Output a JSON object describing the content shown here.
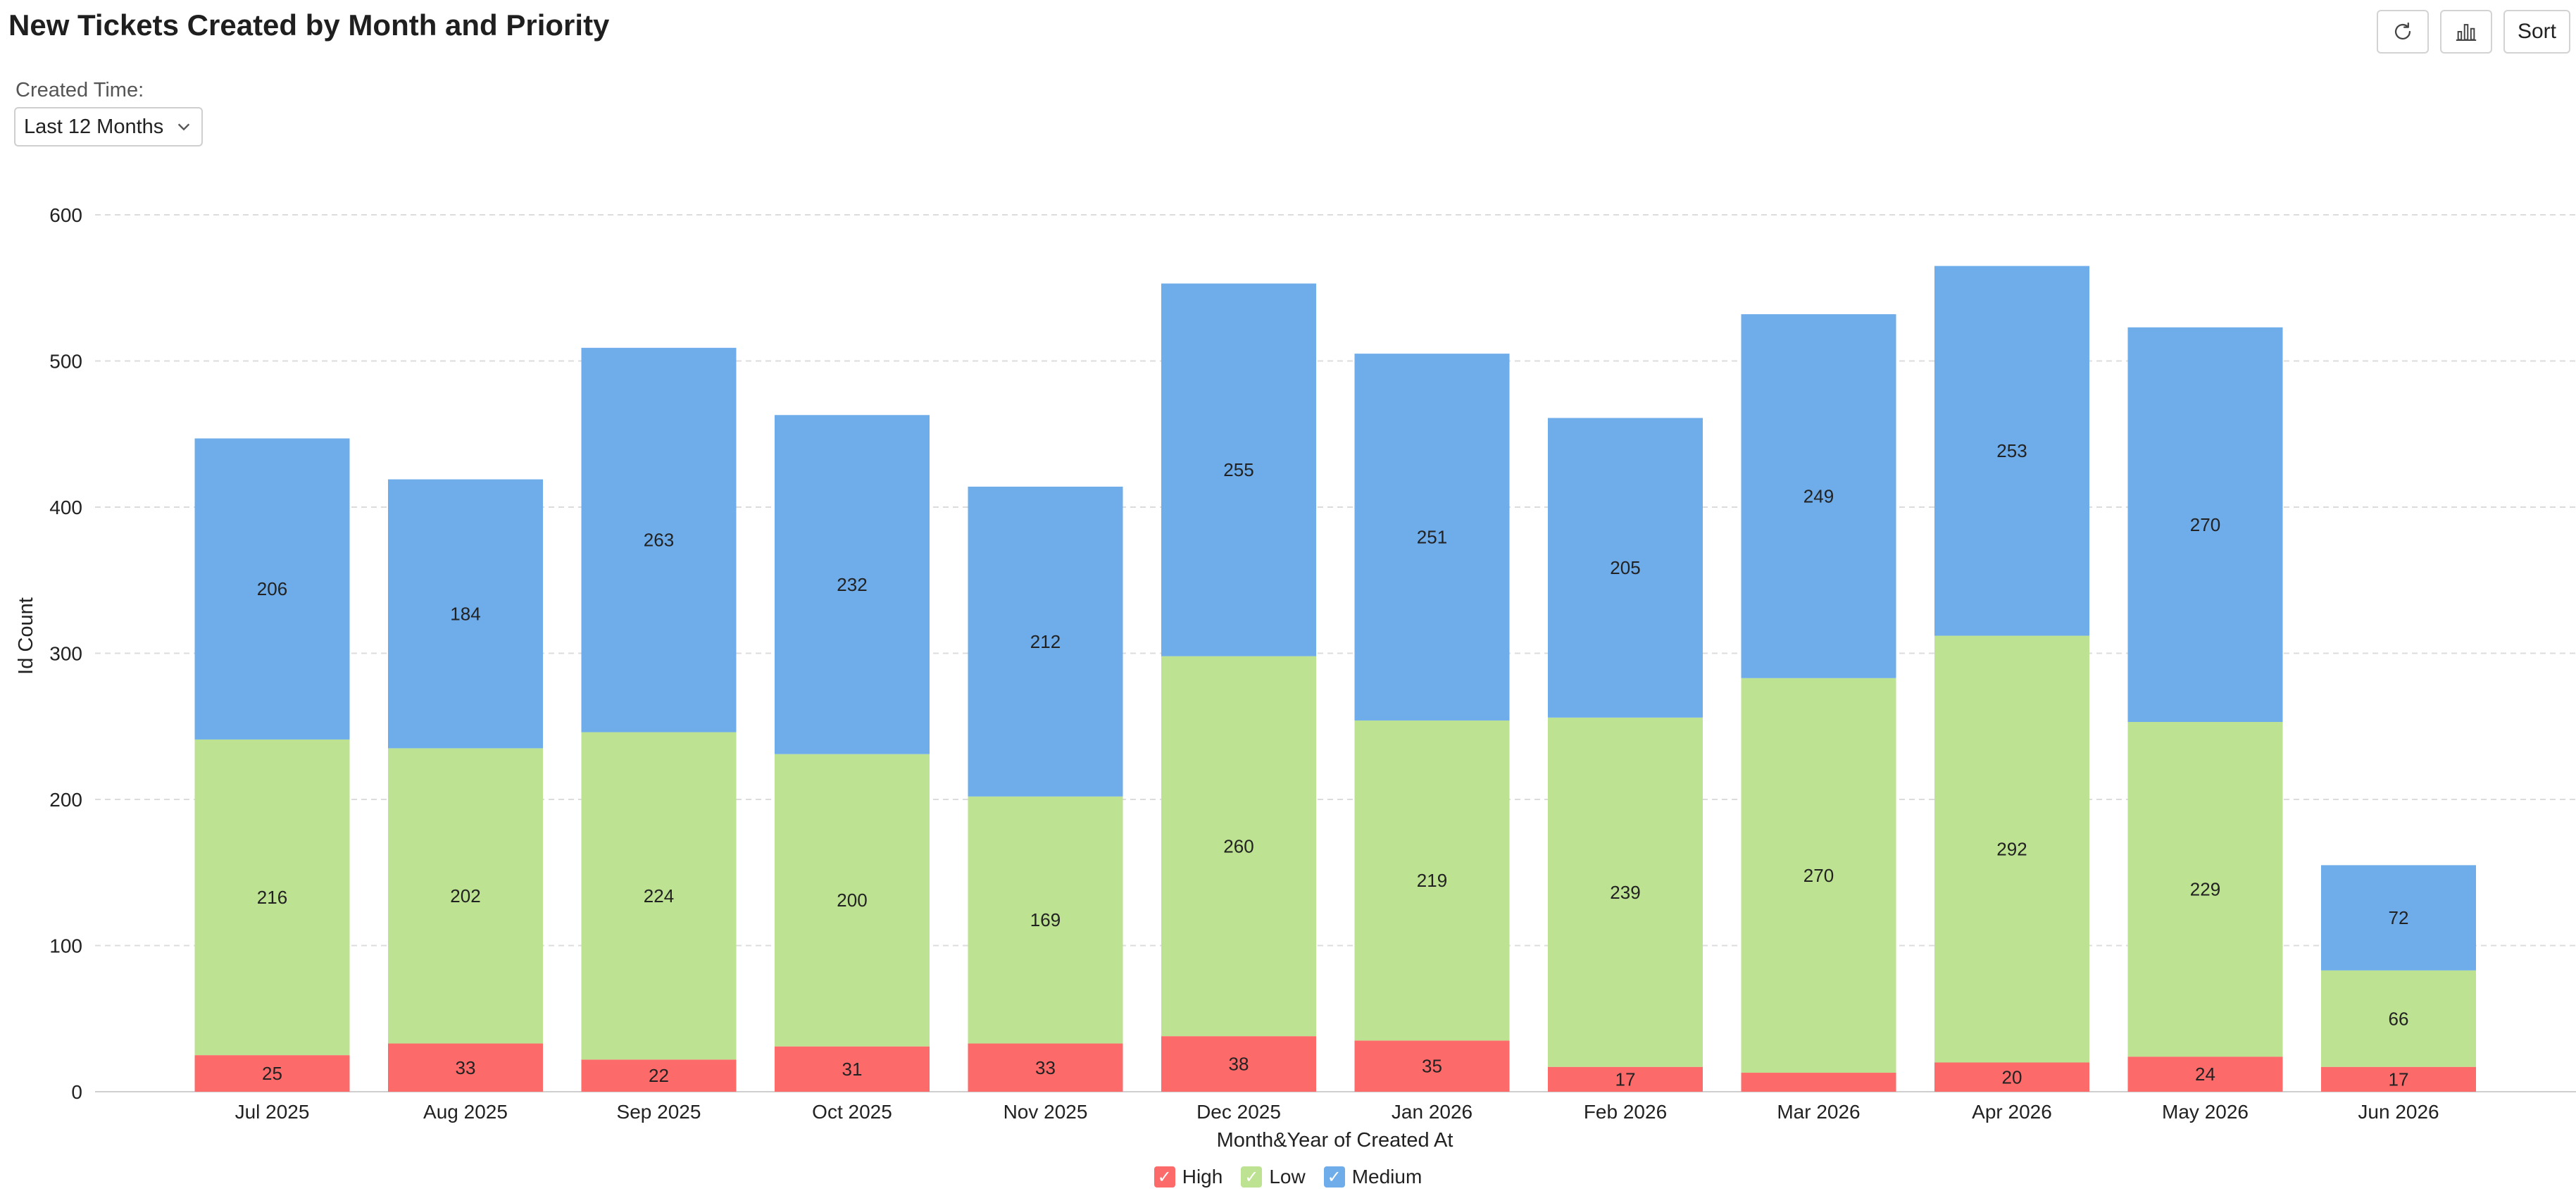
{
  "header": {
    "title": "New Tickets Created by Month and Priority",
    "sort_label": "Sort",
    "refresh_icon": "refresh-icon",
    "chart_type_icon": "bar-chart-icon"
  },
  "filter": {
    "label": "Created Time:",
    "value": "Last 12 Months",
    "dropdown_icon": "chevron-down-icon"
  },
  "chart_data": {
    "type": "bar",
    "stacked": true,
    "xlabel": "Month&Year of Created At",
    "ylabel": "Id Count",
    "ylim": [
      0,
      600
    ],
    "yticks": [
      0,
      100,
      200,
      300,
      400,
      500,
      600
    ],
    "grid": true,
    "legend_position": "bottom-center",
    "categories": [
      "Jul 2025",
      "Aug 2025",
      "Sep 2025",
      "Oct 2025",
      "Nov 2025",
      "Dec 2025",
      "Jan 2026",
      "Feb 2026",
      "Mar 2026",
      "Apr 2026",
      "May 2026",
      "Jun 2026"
    ],
    "series": [
      {
        "name": "High",
        "color": "#fd6a6a",
        "values": [
          25,
          33,
          22,
          31,
          33,
          38,
          35,
          17,
          13,
          20,
          24,
          17
        ],
        "labels": [
          "25",
          "33",
          "22",
          "31",
          "33",
          "38",
          "35",
          "17",
          "",
          "20",
          "24",
          "17"
        ]
      },
      {
        "name": "Low",
        "color": "#bde291",
        "values": [
          216,
          202,
          224,
          200,
          169,
          260,
          219,
          239,
          270,
          292,
          229,
          66
        ],
        "labels": [
          "216",
          "202",
          "224",
          "200",
          "169",
          "260",
          "219",
          "239",
          "270",
          "292",
          "229",
          "66"
        ]
      },
      {
        "name": "Medium",
        "color": "#6eacea",
        "values": [
          206,
          184,
          263,
          232,
          212,
          255,
          251,
          205,
          249,
          253,
          270,
          72
        ],
        "labels": [
          "206",
          "184",
          "263",
          "232",
          "212",
          "255",
          "251",
          "205",
          "249",
          "253",
          "270",
          "72"
        ]
      }
    ]
  },
  "legend": {
    "check_glyph": "✓"
  }
}
